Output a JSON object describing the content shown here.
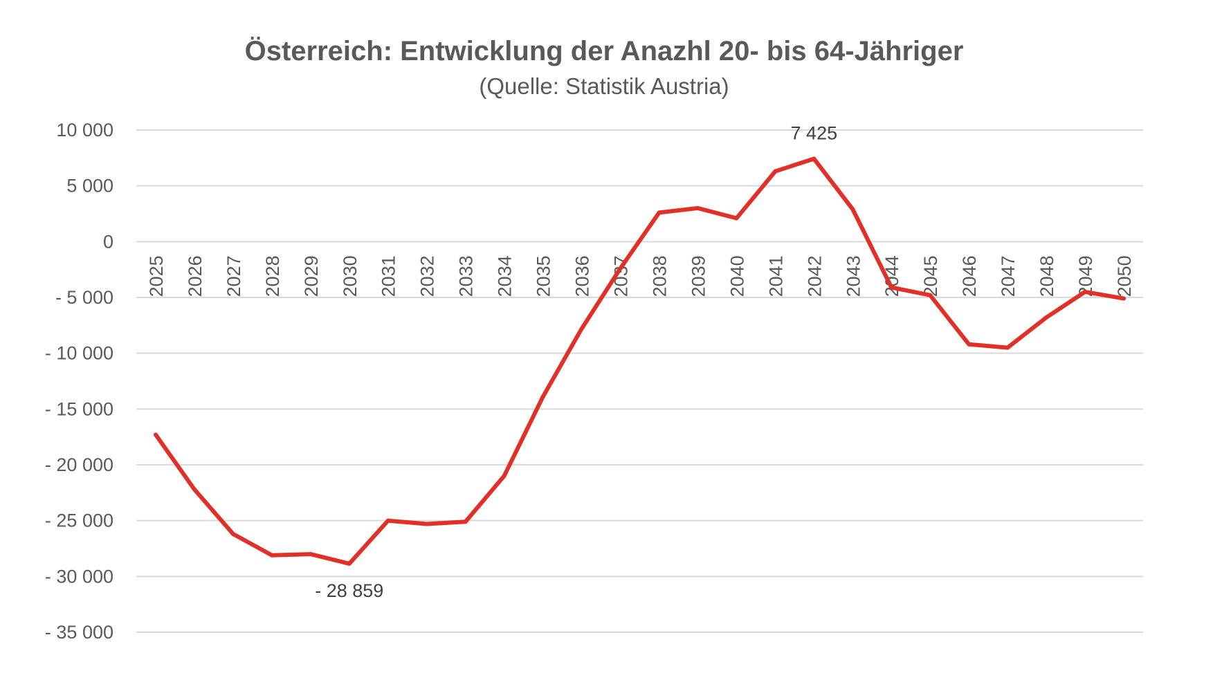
{
  "chart_data": {
    "type": "line",
    "title": "Österreich: Entwicklung der Anazhl 20- bis 64-Jähriger",
    "subtitle": "(Quelle: Statistik Austria)",
    "xlabel": "",
    "ylabel": "",
    "x": [
      "2025",
      "2026",
      "2027",
      "2028",
      "2029",
      "2030",
      "2031",
      "2032",
      "2033",
      "2034",
      "2035",
      "2036",
      "2037",
      "2038",
      "2039",
      "2040",
      "2041",
      "2042",
      "2043",
      "2044",
      "2045",
      "2046",
      "2047",
      "2048",
      "2049",
      "2050"
    ],
    "series": [
      {
        "color": "#e03027",
        "values": [
          -17300,
          -22200,
          -26200,
          -28100,
          -28000,
          -28859,
          -25000,
          -25300,
          -25100,
          -21000,
          -13900,
          -7800,
          -2400,
          2600,
          3000,
          2100,
          6300,
          7425,
          2900,
          -4100,
          -4800,
          -9200,
          -9500,
          -6800,
          -4500,
          -5100
        ]
      }
    ],
    "ylim": [
      -35000,
      10000
    ],
    "yticks": [
      10000,
      5000,
      0,
      -5000,
      -10000,
      -15000,
      -20000,
      -25000,
      -30000,
      -35000
    ],
    "ytick_labels": [
      "10 000",
      "5 000",
      "0",
      "- 5 000",
      "- 10 000",
      "- 15 000",
      "- 20 000",
      "- 25 000",
      "- 30 000",
      "- 35 000"
    ],
    "grid": true,
    "legend": "none",
    "data_labels": [
      {
        "x": "2030",
        "text": "- 28 859",
        "position": "below"
      },
      {
        "x": "2042",
        "text": "7 425",
        "position": "above"
      }
    ],
    "colors": {
      "line": "#e03027",
      "grid": "#d9d9d9",
      "text": "#595959"
    }
  }
}
